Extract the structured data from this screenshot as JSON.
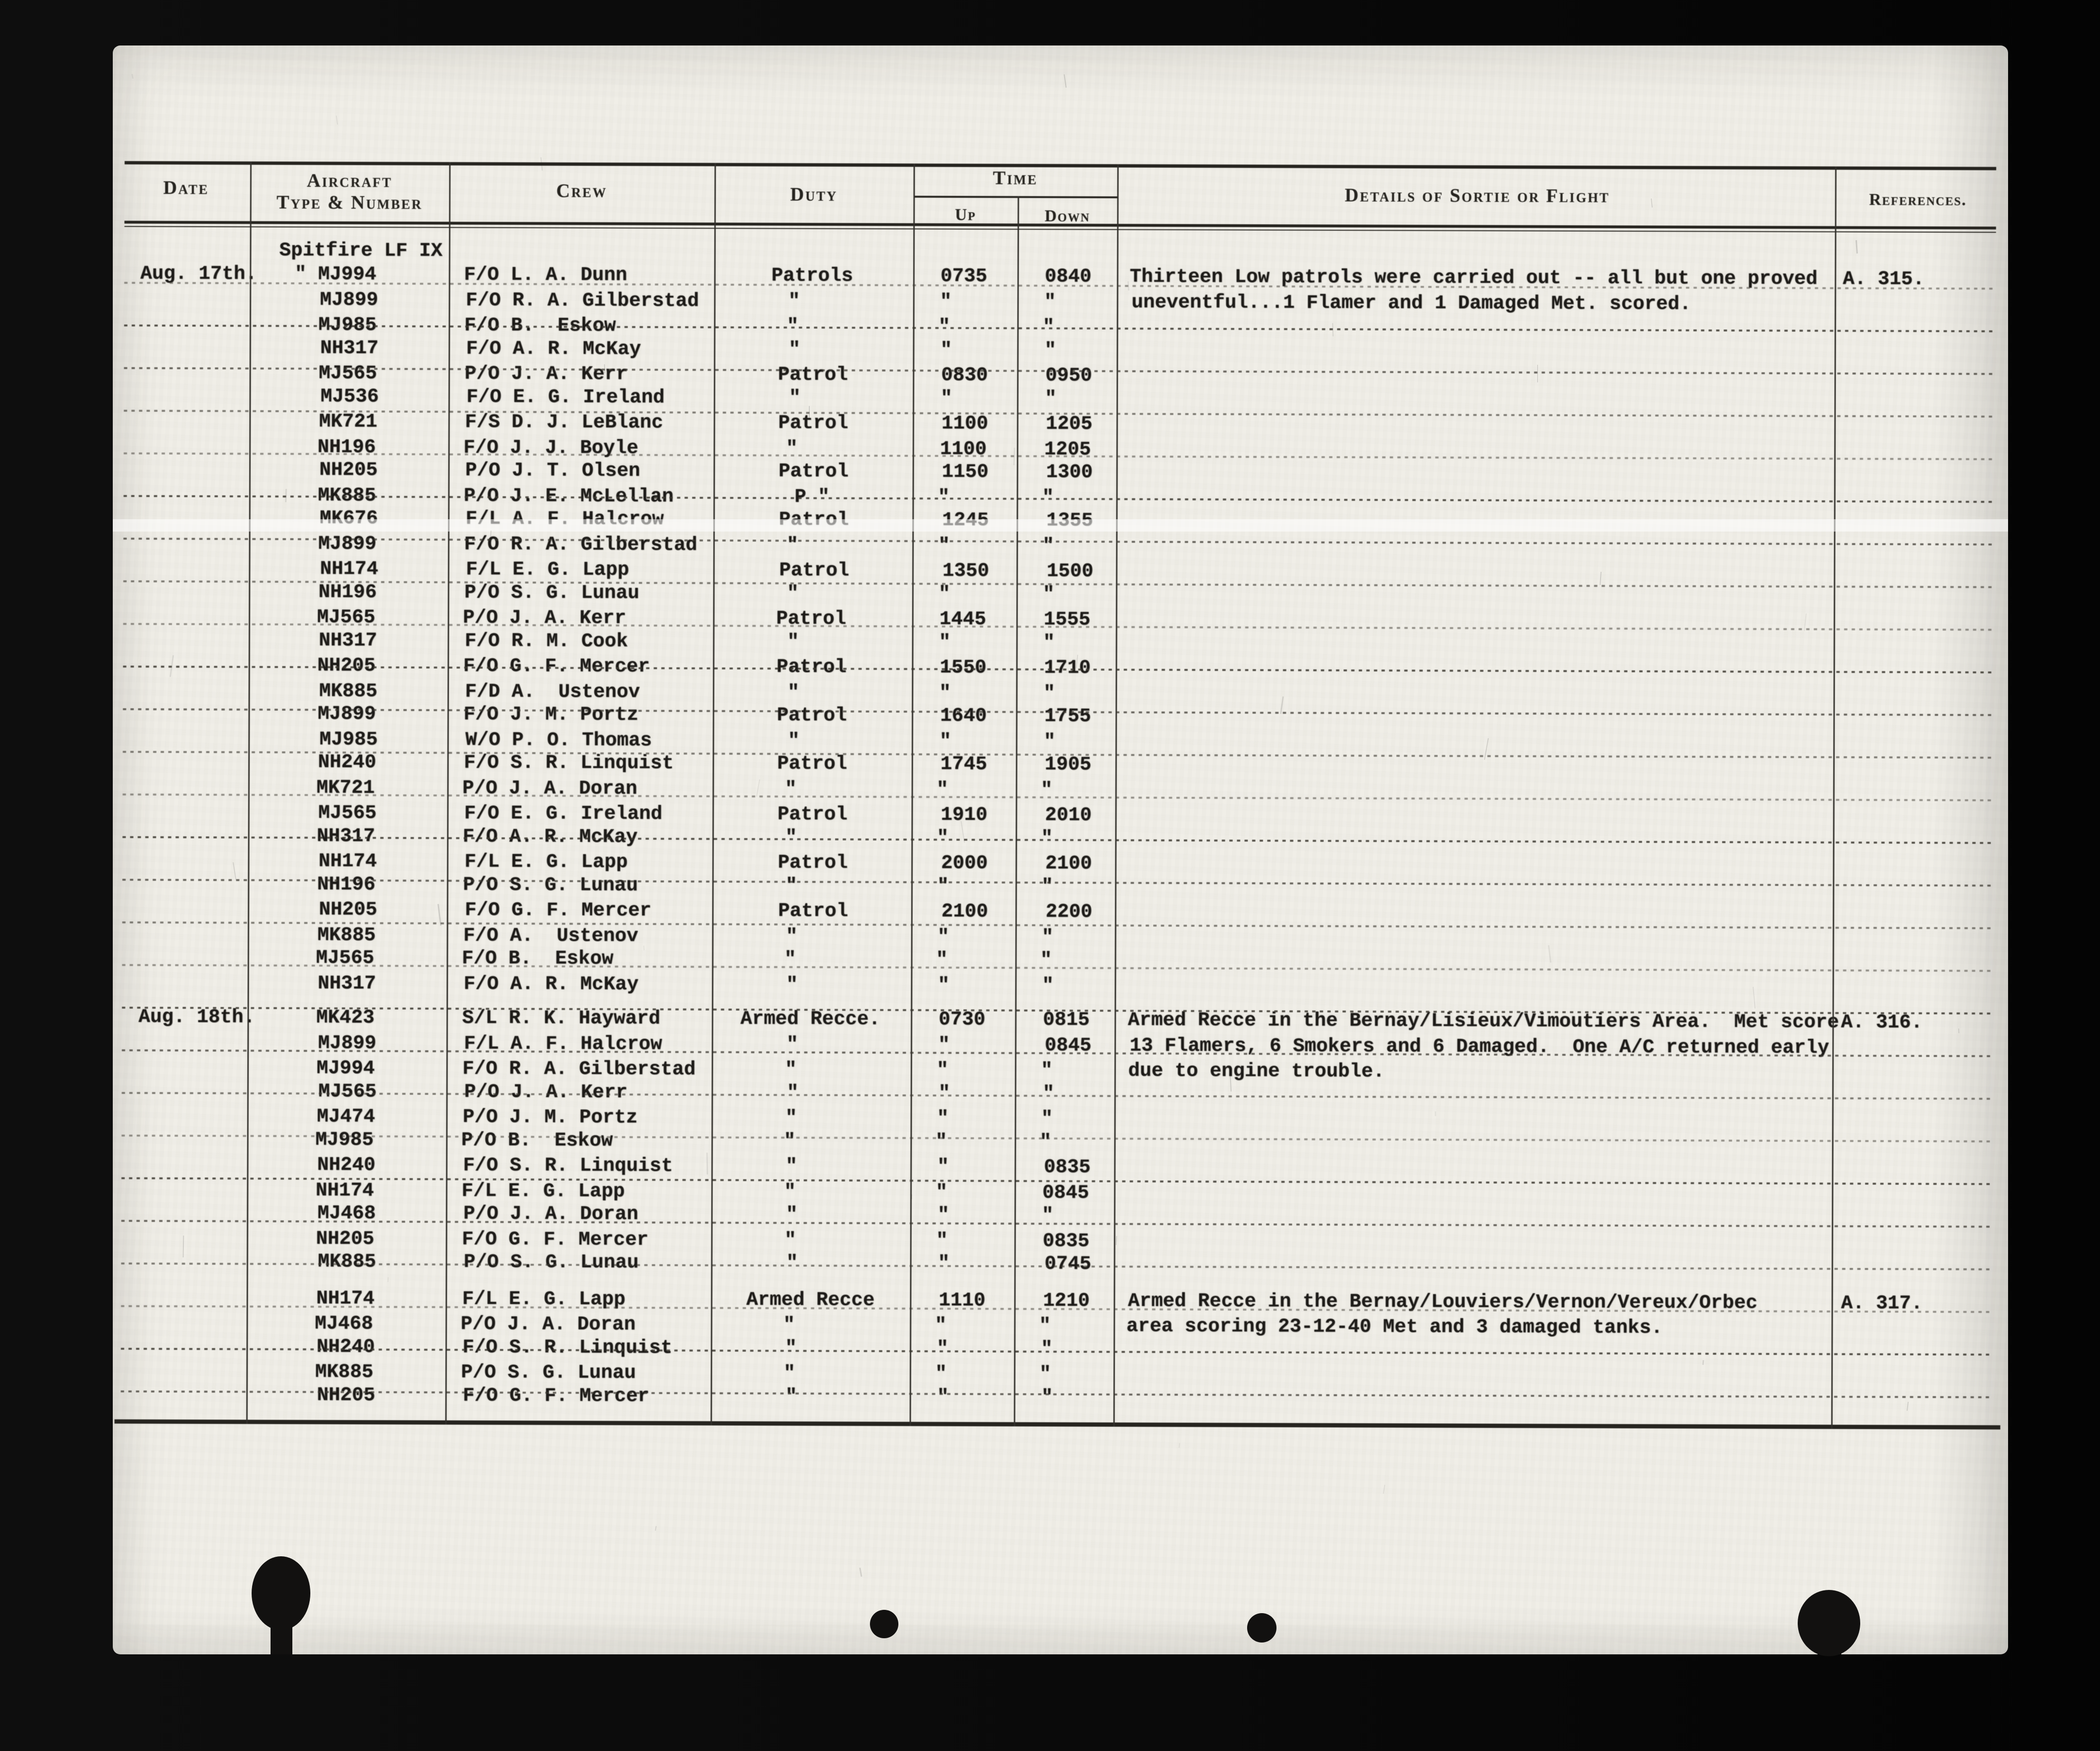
{
  "page": {
    "headers": {
      "date": "Date",
      "aircraft_line1": "Aircraft",
      "aircraft_line2": "Type & Number",
      "crew": "Crew",
      "duty": "Duty",
      "time": "Time",
      "up": "Up",
      "down": "Down",
      "details": "Details of Sortie or Flight",
      "references": "References."
    },
    "aircraft_type_heading": "Spitfire LF IX",
    "rows": [
      {
        "date": "Aug. 17th.",
        "aircraft": "\" MJ994",
        "crew": "F/O L. A. Dunn",
        "duty": "Patrols",
        "up": "0735",
        "down": "0840",
        "details": "Thirteen Low patrols were carried out -- all but one proved",
        "reference": "A. 315."
      },
      {
        "aircraft": "MJ899",
        "crew": "F/O R. A. Gilberstad",
        "duty": "\"",
        "up": "\"",
        "down": "\"",
        "details": "uneventful...1 Flamer and 1 Damaged Met. scored."
      },
      {
        "aircraft": "MJ985",
        "crew": "F/O B.  Eskow",
        "duty": "\"",
        "up": "\"",
        "down": "\""
      },
      {
        "aircraft": "NH317",
        "crew": "F/O A. R. McKay",
        "duty": "\"",
        "up": "\"",
        "down": "\""
      },
      {
        "aircraft": "MJ565",
        "crew": "P/O J. A. Kerr",
        "duty": "Patrol",
        "up": "0830",
        "down": "0950"
      },
      {
        "aircraft": "MJ536",
        "crew": "F/O E. G. Ireland",
        "duty": "\"",
        "up": "\"",
        "down": "\""
      },
      {
        "aircraft": "MK721",
        "crew": "F/S D. J. LeBlanc",
        "duty": "Patrol",
        "up": "1100",
        "down": "1205"
      },
      {
        "aircraft": "NH196",
        "crew": "F/O J. J. Boyle",
        "duty": "\"",
        "up": "1100",
        "down": "1205"
      },
      {
        "aircraft": "NH205",
        "crew": "P/O J. T. Olsen",
        "duty": "Patrol",
        "up": "1150",
        "down": "1300"
      },
      {
        "aircraft": "MK885",
        "crew": "P/O J. E. McLellan",
        "duty": "P \"",
        "up": "\"",
        "down": "\""
      },
      {
        "aircraft": "MK676",
        "crew": "F/L A. F. Halcrow",
        "duty": "Patrol",
        "up": "1245",
        "down": "1355"
      },
      {
        "aircraft": "MJ899",
        "crew": "F/O R. A. Gilberstad",
        "duty": "\"",
        "up": "\"",
        "down": "\""
      },
      {
        "aircraft": "NH174",
        "crew": "F/L E. G. Lapp",
        "duty": "Patrol",
        "up": "1350",
        "down": "1500"
      },
      {
        "aircraft": "NH196",
        "crew": "P/O S. G. Lunau",
        "duty": "\"",
        "up": "\"",
        "down": "\""
      },
      {
        "aircraft": "MJ565",
        "crew": "P/O J. A. Kerr",
        "duty": "Patrol",
        "up": "1445",
        "down": "1555"
      },
      {
        "aircraft": "NH317",
        "crew": "F/O R. M. Cook",
        "duty": "\"",
        "up": "\"",
        "down": "\""
      },
      {
        "aircraft": "NH205",
        "crew": "F/O G. F. Mercer",
        "duty": "Patrol",
        "up": "1550",
        "down": "1710"
      },
      {
        "aircraft": "MK885",
        "crew": "F/D A.  Ustenov",
        "duty": "\"",
        "up": "\"",
        "down": "\""
      },
      {
        "aircraft": "MJ899",
        "crew": "F/O J. M. Portz",
        "duty": "Patrol",
        "up": "1640",
        "down": "1755"
      },
      {
        "aircraft": "MJ985",
        "crew": "W/O P. O. Thomas",
        "duty": "\"",
        "up": "\"",
        "down": "\""
      },
      {
        "aircraft": "NH240",
        "crew": "F/O S. R. Linquist",
        "duty": "Patrol",
        "up": "1745",
        "down": "1905"
      },
      {
        "aircraft": "MK721",
        "crew": "P/O J. A. Doran",
        "duty": "\"",
        "up": "\"",
        "down": "\""
      },
      {
        "aircraft": "MJ565",
        "crew": "F/O E. G. Ireland",
        "duty": "Patrol",
        "up": "1910",
        "down": "2010"
      },
      {
        "aircraft": "NH317",
        "crew": "F/O A. R. McKay",
        "duty": "\"",
        "up": "\"",
        "down": "\""
      },
      {
        "aircraft": "NH174",
        "crew": "F/L E. G. Lapp",
        "duty": "Patrol",
        "up": "2000",
        "down": "2100"
      },
      {
        "aircraft": "NH196",
        "crew": "P/O S. G. Lunau",
        "duty": "\"",
        "up": "\"",
        "down": "\""
      },
      {
        "aircraft": "NH205",
        "crew": "F/O G. F. Mercer",
        "duty": "Patrol",
        "up": "2100",
        "down": "2200"
      },
      {
        "aircraft": "MK885",
        "crew": "F/O A.  Ustenov",
        "duty": "\"",
        "up": "\"",
        "down": "\""
      },
      {
        "aircraft": "MJ565",
        "crew": "F/O B.  Eskow",
        "duty": "\"",
        "up": "\"",
        "down": "\""
      },
      {
        "aircraft": "NH317",
        "crew": "F/O A. R. McKay",
        "duty": "\"",
        "up": "\"",
        "down": "\""
      },
      {
        "date": "Aug. 18th.",
        "aircraft": "MK423",
        "crew": "S/L R. K. Hayward",
        "duty": "Armed Recce.",
        "up": "0730",
        "down": "0815",
        "details": "Armed Recce in the Bernay/Lisieux/Vimoutiers Area.  Met score",
        "reference": "A. 316.",
        "gap_before": true
      },
      {
        "aircraft": "MJ899",
        "crew": "F/L A. F. Halcrow",
        "duty": "\"",
        "up": "\"",
        "down": "0845",
        "details": "13 Flamers, 6 Smokers and 6 Damaged.  One A/C returned early"
      },
      {
        "aircraft": "MJ994",
        "crew": "F/O R. A. Gilberstad",
        "duty": "\"",
        "up": "\"",
        "down": "\"",
        "details": "due to engine trouble."
      },
      {
        "aircraft": "MJ565",
        "crew": "P/O J. A. Kerr",
        "duty": "\"",
        "up": "\"",
        "down": "\""
      },
      {
        "aircraft": "MJ474",
        "crew": "P/O J. M. Portz",
        "duty": "\"",
        "up": "\"",
        "down": "\""
      },
      {
        "aircraft": "MJ985",
        "crew": "P/O B.  Eskow",
        "duty": "\"",
        "up": "\"",
        "down": "\""
      },
      {
        "aircraft": "NH240",
        "crew": "F/O S. R. Linquist",
        "duty": "\"",
        "up": "\"",
        "down": "0835"
      },
      {
        "aircraft": "NH174",
        "crew": "F/L E. G. Lapp",
        "duty": "\"",
        "up": "\"",
        "down": "0845"
      },
      {
        "aircraft": "MJ468",
        "crew": "P/O J. A. Doran",
        "duty": "\"",
        "up": "\"",
        "down": "\""
      },
      {
        "aircraft": "NH205",
        "crew": "F/O G. F. Mercer",
        "duty": "\"",
        "up": "\"",
        "down": "0835"
      },
      {
        "aircraft": "MK885",
        "crew": "P/O S. G. Lunau",
        "duty": "\"",
        "up": "\"",
        "down": "0745"
      },
      {
        "aircraft": "NH174",
        "crew": "F/L E. G. Lapp",
        "duty": "Armed Recce",
        "up": "1110",
        "down": "1210",
        "details": "Armed Recce in the Bernay/Louviers/Vernon/Vereux/Orbec",
        "reference": "A. 317.",
        "gap_before": true
      },
      {
        "aircraft": "MJ468",
        "crew": "P/O J. A. Doran",
        "duty": "\"",
        "up": "\"",
        "down": "\"",
        "details": "area scoring 23-12-40 Met and 3 damaged tanks."
      },
      {
        "aircraft": "NH240",
        "crew": "F/O S. R. Linquist",
        "duty": "\"",
        "up": "\"",
        "down": "\""
      },
      {
        "aircraft": "MK885",
        "crew": "P/O S. G. Lunau",
        "duty": "\"",
        "up": "\"",
        "down": "\""
      },
      {
        "aircraft": "NH205",
        "crew": "F/O G. F. Mercer",
        "duty": "\"",
        "up": "\"",
        "down": "\""
      }
    ]
  }
}
